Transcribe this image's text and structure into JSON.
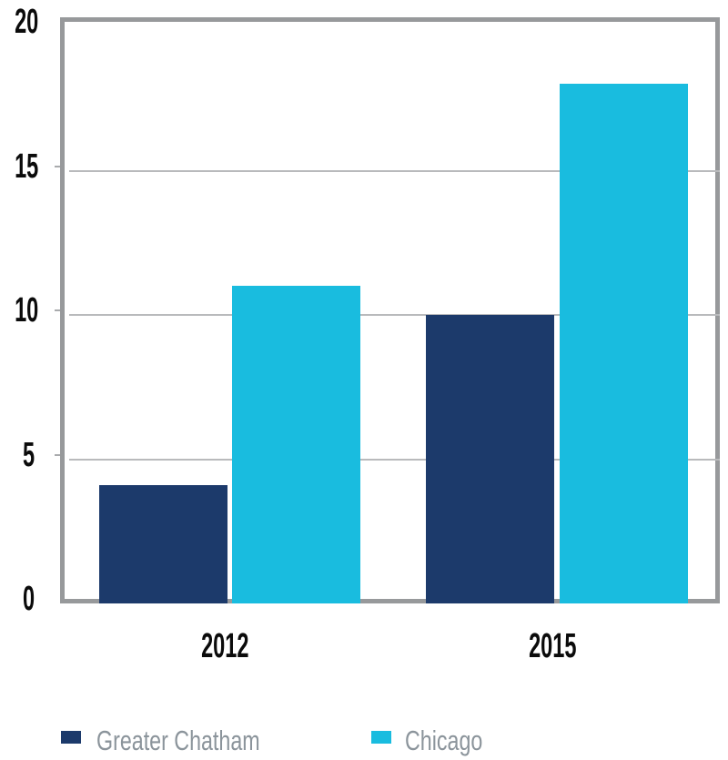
{
  "chart_data": {
    "type": "bar",
    "title": "",
    "xlabel": "",
    "ylabel": "",
    "categories": [
      "2012",
      "2015"
    ],
    "series": [
      {
        "name": "Greater Chatham",
        "color": "#1c3a6b",
        "values": [
          4.1,
          10
        ]
      },
      {
        "name": "Chicago",
        "color": "#19bcdf",
        "values": [
          11,
          18
        ]
      }
    ],
    "ylim": [
      0,
      20
    ],
    "yticks": [
      0,
      5,
      10,
      15,
      20
    ],
    "grid": true,
    "legend_position": "bottom"
  },
  "colors": {
    "greater_chatham": "#1c3a6b",
    "chicago": "#19bcdf",
    "plot_border": "#97999b",
    "gridline": "#b9babc",
    "tick_mark": "#a9abad",
    "tick_label_text": "#0b0b0b",
    "legend_text": "#8b949b",
    "background": "#ffffff"
  }
}
